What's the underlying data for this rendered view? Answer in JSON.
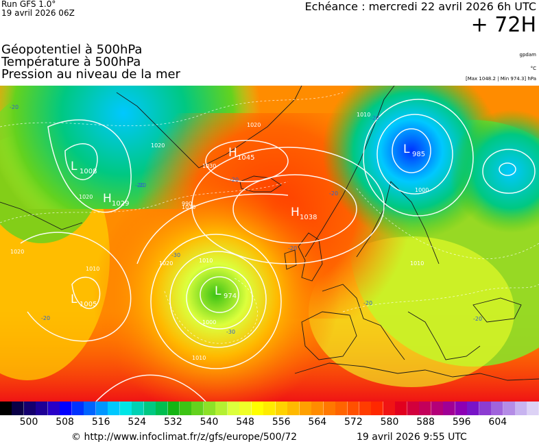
{
  "header": {
    "model": "Run GFS 1.0°",
    "run_date": "19 avril 2026 06Z",
    "forecast_time": "Echéance : mercredi 22 avril 2026 6h UTC",
    "lead_time": "+ 72H"
  },
  "parameters": [
    "Géopotentiel à 500hPa",
    "Température à 500hPa",
    "Pression au niveau de la mer"
  ],
  "units": {
    "geopotential": "gpdam",
    "temperature": "°C",
    "pressure_range": "[Max 1048.2 | Min 974.3] hPa"
  },
  "pressure_centers": [
    {
      "type": "L",
      "value": "1008"
    },
    {
      "type": "H",
      "value": "1029"
    },
    {
      "type": "H",
      "value": "1045"
    },
    {
      "type": "H",
      "value": "1038"
    },
    {
      "type": "L",
      "value": "985"
    },
    {
      "type": "L",
      "value": "1005"
    },
    {
      "type": "L",
      "value": "974"
    }
  ],
  "isobar_labels": [
    "1020",
    "1030",
    "1020",
    "1020",
    "1010",
    "1010",
    "1000",
    "1010",
    "1020",
    "1010",
    "1000",
    "990",
    "1030",
    "1020",
    "1010"
  ],
  "temperature_labels": [
    "-20",
    "-20",
    "-20",
    "-20",
    "-20",
    "-20",
    "-30",
    "-30",
    "-20",
    "-20",
    "-20",
    "-20"
  ],
  "legend": {
    "labels": [
      "500",
      "508",
      "516",
      "524",
      "532",
      "540",
      "548",
      "556",
      "564",
      "572",
      "580",
      "588",
      "596",
      "604"
    ],
    "colors": [
      "#000000",
      "#0a0046",
      "#14006e",
      "#1e0096",
      "#2800c8",
      "#0000ff",
      "#0032ff",
      "#0064ff",
      "#0096ff",
      "#00c8ff",
      "#00e6e6",
      "#00d2b4",
      "#00c882",
      "#00be50",
      "#14b414",
      "#3cc314",
      "#64d21e",
      "#8ce128",
      "#b4f032",
      "#dcff3c",
      "#f0ff28",
      "#ffff00",
      "#ffeb00",
      "#ffd200",
      "#ffb900",
      "#ffa000",
      "#ff8c00",
      "#ff7800",
      "#ff6400",
      "#ff5000",
      "#ff3c00",
      "#ff2800",
      "#f01414",
      "#e1001e",
      "#d2003c",
      "#c3005a",
      "#b40078",
      "#a00096",
      "#8c00b4",
      "#7814c8",
      "#8c3cd2",
      "#a064dc",
      "#b48ce6",
      "#c8b4f0",
      "#dcd2f5"
    ]
  },
  "footer": {
    "url": "© http://www.infoclimat.fr/z/gfs/europe/500/72",
    "generated": "19 avril 2026  9:55 UTC"
  }
}
